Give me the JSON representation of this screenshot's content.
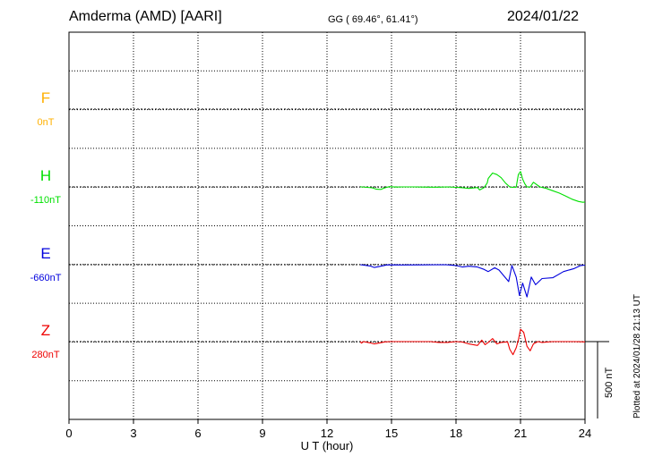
{
  "header": {
    "station": "Amderma (AMD)  [AARI]",
    "coords": "GG ( 69.46°,  61.41°)",
    "date": "2024/01/22"
  },
  "plotted_note": "Plotted at 2024/01/28 21:13 UT",
  "chart_data": {
    "type": "line",
    "xlabel": "U T (hour)",
    "xlim": [
      0,
      24
    ],
    "xticks": [
      "0",
      "3",
      "6",
      "9",
      "12",
      "15",
      "18",
      "21",
      "24"
    ],
    "grid": true,
    "scale_bar": {
      "label": "500 nT",
      "value_nT": 500
    },
    "series": [
      {
        "name": "F",
        "baseline_label": "0nT",
        "color": "#ffb000",
        "points": []
      },
      {
        "name": "H",
        "baseline_label": "-110nT",
        "color": "#00e000",
        "points": [
          [
            13.55,
            1.5
          ],
          [
            13.6,
            0
          ],
          [
            14.1,
            -6
          ],
          [
            14.3,
            -15
          ],
          [
            14.5,
            -16
          ],
          [
            14.7,
            -6
          ],
          [
            14.9,
            2
          ],
          [
            15.2,
            -1
          ],
          [
            15.5,
            0
          ],
          [
            16.0,
            0
          ],
          [
            16.5,
            -1
          ],
          [
            16.8,
            -2
          ],
          [
            17.2,
            -2
          ],
          [
            17.6,
            0
          ],
          [
            18.0,
            -3
          ],
          [
            18.3,
            -5
          ],
          [
            18.6,
            -10
          ],
          [
            19.0,
            -4
          ],
          [
            19.1,
            -20
          ],
          [
            19.3,
            -5
          ],
          [
            19.45,
            25
          ],
          [
            19.5,
            55
          ],
          [
            19.7,
            90
          ],
          [
            19.9,
            80
          ],
          [
            20.1,
            60
          ],
          [
            20.3,
            25
          ],
          [
            20.5,
            0
          ],
          [
            20.6,
            -3
          ],
          [
            20.8,
            -2
          ],
          [
            20.85,
            40
          ],
          [
            20.9,
            80
          ],
          [
            21.0,
            100
          ],
          [
            21.1,
            50
          ],
          [
            21.2,
            20
          ],
          [
            21.3,
            0
          ],
          [
            21.45,
            -1
          ],
          [
            21.6,
            30
          ],
          [
            21.9,
            0
          ],
          [
            22.2,
            -10
          ],
          [
            22.5,
            -25
          ],
          [
            22.8,
            -40
          ],
          [
            23.1,
            -60
          ],
          [
            23.4,
            -80
          ],
          [
            23.7,
            -95
          ],
          [
            23.9,
            -100
          ],
          [
            24.0,
            -98
          ]
        ]
      },
      {
        "name": "E",
        "baseline_label": "-660nT",
        "color": "#0000dd",
        "points": [
          [
            13.55,
            0
          ],
          [
            14.0,
            -8
          ],
          [
            14.2,
            -18
          ],
          [
            14.4,
            -13
          ],
          [
            14.8,
            -1
          ],
          [
            15.5,
            -2
          ],
          [
            16.5,
            -1
          ],
          [
            17.5,
            0
          ],
          [
            18.0,
            -5
          ],
          [
            18.3,
            -15
          ],
          [
            18.6,
            -10
          ],
          [
            19.0,
            -15
          ],
          [
            19.3,
            -30
          ],
          [
            19.5,
            -45
          ],
          [
            19.8,
            -20
          ],
          [
            20.0,
            -35
          ],
          [
            20.3,
            -85
          ],
          [
            20.45,
            -110
          ],
          [
            20.6,
            -5
          ],
          [
            20.8,
            -80
          ],
          [
            20.95,
            -200
          ],
          [
            21.1,
            -120
          ],
          [
            21.3,
            -210
          ],
          [
            21.5,
            -80
          ],
          [
            21.7,
            -130
          ],
          [
            22.0,
            -90
          ],
          [
            22.5,
            -85
          ],
          [
            23.0,
            -45
          ],
          [
            23.5,
            -25
          ],
          [
            23.8,
            -5
          ],
          [
            24.0,
            -3
          ]
        ]
      },
      {
        "name": "Z",
        "baseline_label": "280nT",
        "color": "#ee0000",
        "points": [
          [
            13.55,
            1
          ],
          [
            13.6,
            -10
          ],
          [
            13.7,
            0
          ],
          [
            14.0,
            -8
          ],
          [
            14.2,
            -15
          ],
          [
            14.4,
            -10
          ],
          [
            14.7,
            -2
          ],
          [
            15.0,
            0
          ],
          [
            16.0,
            0
          ],
          [
            16.8,
            0
          ],
          [
            17.2,
            -5
          ],
          [
            17.6,
            -5
          ],
          [
            18.0,
            0
          ],
          [
            18.3,
            -3
          ],
          [
            18.6,
            -15
          ],
          [
            19.0,
            -25
          ],
          [
            19.2,
            10
          ],
          [
            19.35,
            -20
          ],
          [
            19.5,
            -5
          ],
          [
            19.7,
            20
          ],
          [
            19.9,
            -15
          ],
          [
            20.1,
            -5
          ],
          [
            20.4,
            -2
          ],
          [
            20.5,
            -50
          ],
          [
            20.65,
            -85
          ],
          [
            20.8,
            -40
          ],
          [
            20.9,
            10
          ],
          [
            21.0,
            80
          ],
          [
            21.15,
            60
          ],
          [
            21.3,
            -30
          ],
          [
            21.45,
            -60
          ],
          [
            21.6,
            -15
          ],
          [
            21.8,
            0
          ],
          [
            22.0,
            -5
          ],
          [
            22.5,
            0
          ],
          [
            23.0,
            0
          ],
          [
            23.5,
            0
          ],
          [
            24.0,
            -2
          ]
        ]
      }
    ]
  }
}
